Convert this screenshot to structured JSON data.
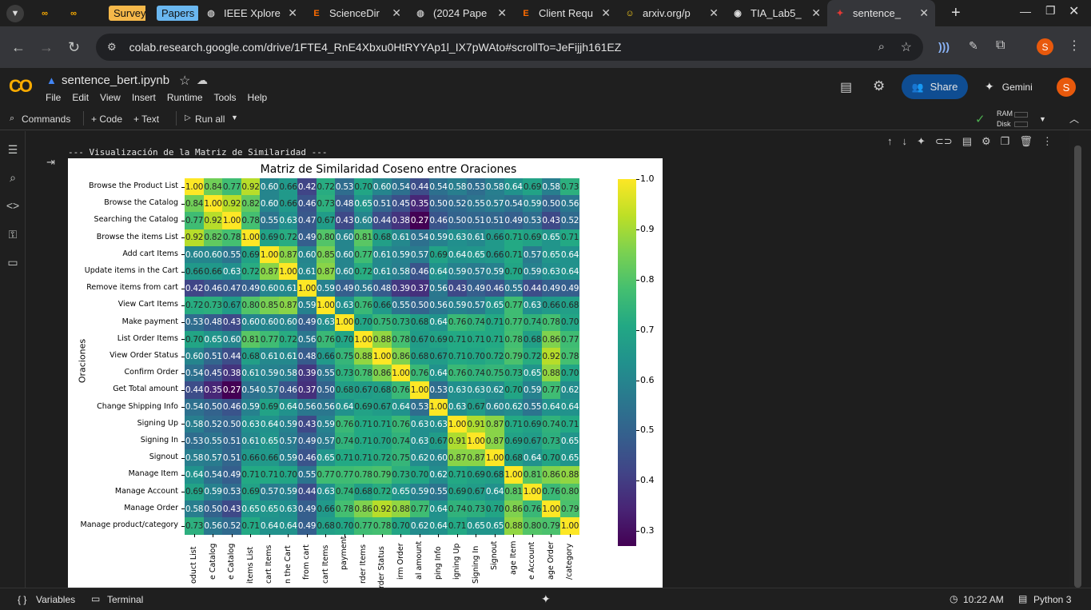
{
  "browser": {
    "tabs": [
      {
        "label": "",
        "icon": "colab-logo-icon"
      },
      {
        "label": "",
        "icon": "colab-logo-icon"
      },
      {
        "label": "Surveys",
        "icon": "bookmark-pill",
        "color": "#f5b84a"
      },
      {
        "label": "Papers",
        "icon": "bookmark-pill",
        "color": "#6ab7f0"
      },
      {
        "label": "IEEE Xplore",
        "icon": "globe-icon"
      },
      {
        "label": "ScienceDir",
        "icon": "elsevier-icon"
      },
      {
        "label": "(2024 Pape",
        "icon": "globe-icon"
      },
      {
        "label": "Client Requ",
        "icon": "elsevier-icon"
      },
      {
        "label": "arxiv.org/p",
        "icon": "smiley-icon"
      },
      {
        "label": "TIA_Lab5_",
        "icon": "github-icon"
      },
      {
        "label": "sentence_",
        "icon": "colab-icon",
        "active": true
      }
    ],
    "url": "colab.research.google.com/drive/1FTE4_RnE4Xbxu0HtRYYAp1l_IX7pWAto#scrollTo=JeFijjh161EZ",
    "profile_initial": "S"
  },
  "colab": {
    "notebook_name": "sentence_bert.ipynb",
    "menu": [
      "File",
      "Edit",
      "View",
      "Insert",
      "Runtime",
      "Tools",
      "Help"
    ],
    "share_label": "Share",
    "gemini_label": "Gemini",
    "avatar_initial": "S",
    "toolbar": {
      "commands": "Commands",
      "code": "+ Code",
      "text": "+ Text",
      "run_all": "Run all",
      "ram": "RAM",
      "disk": "Disk"
    }
  },
  "output": {
    "stdout": "--- Visualización de la Matriz de Similaridad ---"
  },
  "chart_data": {
    "type": "heatmap",
    "title": "Matriz de Similaridad Coseno entre Oraciones",
    "ylabel": "Oraciones",
    "xlabel": "",
    "colormap": "viridis",
    "vmin": 0.27,
    "vmax": 1.0,
    "colorbar_ticks": [
      "1.0",
      "0.9",
      "0.8",
      "0.7",
      "0.6",
      "0.5",
      "0.4",
      "0.3"
    ],
    "labels": [
      "Browse the Product List",
      "Browse the Catalog",
      "Searching the Catalog",
      "Browse the items List",
      "Add cart Items",
      "Update items in the Cart",
      "Remove items from cart",
      "View Cart Items",
      "Make payment",
      "List Order Items",
      "View Order Status",
      "Confirm Order",
      "Get Total amount",
      "Change Shipping Info",
      "Signing Up",
      "Signing In",
      "Signout",
      "Manage Item",
      "Manage Account",
      "Manage Order",
      "Manage product/category"
    ],
    "xtick_labels_visible": [
      "oduct List",
      "e Catalog",
      "e Catalog",
      "items List",
      "cart Items",
      "n the Cart",
      "from cart",
      "cart Items",
      "payment",
      "rder Items",
      "rder Status",
      "irm Order",
      "al amount",
      "ping Info",
      "igning Up",
      "Signing In",
      "Signout",
      "age Item",
      "e Account",
      "age Order",
      "/category"
    ],
    "matrix": [
      [
        1.0,
        0.84,
        0.77,
        0.92,
        0.6,
        0.66,
        0.42,
        0.72,
        0.53,
        0.7,
        0.6,
        0.54,
        0.44,
        0.54,
        0.58,
        0.53,
        0.58,
        0.64,
        0.69,
        0.58,
        0.73
      ],
      [
        0.84,
        1.0,
        0.92,
        0.82,
        0.6,
        0.66,
        0.46,
        0.73,
        0.48,
        0.65,
        0.51,
        0.45,
        0.35,
        0.5,
        0.52,
        0.55,
        0.57,
        0.54,
        0.59,
        0.5,
        0.56
      ],
      [
        0.77,
        0.92,
        1.0,
        0.78,
        0.55,
        0.63,
        0.47,
        0.67,
        0.43,
        0.6,
        0.44,
        0.38,
        0.27,
        0.46,
        0.5,
        0.51,
        0.51,
        0.49,
        0.53,
        0.43,
        0.52
      ],
      [
        0.92,
        0.82,
        0.78,
        1.0,
        0.69,
        0.72,
        0.49,
        0.8,
        0.6,
        0.81,
        0.68,
        0.61,
        0.54,
        0.59,
        0.63,
        0.61,
        0.66,
        0.71,
        0.69,
        0.65,
        0.71
      ],
      [
        0.6,
        0.6,
        0.55,
        0.69,
        1.0,
        0.87,
        0.6,
        0.85,
        0.6,
        0.77,
        0.61,
        0.59,
        0.57,
        0.69,
        0.64,
        0.65,
        0.66,
        0.71,
        0.57,
        0.65,
        0.64
      ],
      [
        0.66,
        0.66,
        0.63,
        0.72,
        0.87,
        1.0,
        0.61,
        0.87,
        0.6,
        0.72,
        0.61,
        0.58,
        0.46,
        0.64,
        0.59,
        0.57,
        0.59,
        0.7,
        0.59,
        0.63,
        0.64
      ],
      [
        0.42,
        0.46,
        0.47,
        0.49,
        0.6,
        0.61,
        1.0,
        0.59,
        0.49,
        0.56,
        0.48,
        0.39,
        0.37,
        0.56,
        0.43,
        0.49,
        0.46,
        0.55,
        0.44,
        0.49,
        0.49
      ],
      [
        0.72,
        0.73,
        0.67,
        0.8,
        0.85,
        0.87,
        0.59,
        1.0,
        0.63,
        0.76,
        0.66,
        0.55,
        0.5,
        0.56,
        0.59,
        0.57,
        0.65,
        0.77,
        0.63,
        0.66,
        0.68
      ],
      [
        0.53,
        0.48,
        0.43,
        0.6,
        0.6,
        0.6,
        0.49,
        0.63,
        1.0,
        0.7,
        0.75,
        0.73,
        0.68,
        0.64,
        0.76,
        0.74,
        0.71,
        0.77,
        0.74,
        0.78,
        0.7
      ],
      [
        0.7,
        0.65,
        0.6,
        0.81,
        0.77,
        0.72,
        0.56,
        0.76,
        0.7,
        1.0,
        0.88,
        0.78,
        0.67,
        0.69,
        0.71,
        0.71,
        0.71,
        0.78,
        0.68,
        0.86,
        0.77
      ],
      [
        0.6,
        0.51,
        0.44,
        0.68,
        0.61,
        0.61,
        0.48,
        0.66,
        0.75,
        0.88,
        1.0,
        0.86,
        0.68,
        0.67,
        0.71,
        0.7,
        0.72,
        0.79,
        0.72,
        0.92,
        0.78
      ],
      [
        0.54,
        0.45,
        0.38,
        0.61,
        0.59,
        0.58,
        0.39,
        0.55,
        0.73,
        0.78,
        0.86,
        1.0,
        0.76,
        0.64,
        0.76,
        0.74,
        0.75,
        0.73,
        0.65,
        0.88,
        0.7
      ],
      [
        0.44,
        0.35,
        0.27,
        0.54,
        0.57,
        0.46,
        0.37,
        0.5,
        0.68,
        0.67,
        0.68,
        0.76,
        1.0,
        0.53,
        0.63,
        0.63,
        0.62,
        0.7,
        0.59,
        0.77,
        0.62
      ],
      [
        0.54,
        0.5,
        0.46,
        0.59,
        0.69,
        0.64,
        0.56,
        0.56,
        0.64,
        0.69,
        0.67,
        0.64,
        0.53,
        1.0,
        0.63,
        0.67,
        0.6,
        0.62,
        0.55,
        0.64,
        0.64
      ],
      [
        0.58,
        0.52,
        0.5,
        0.63,
        0.64,
        0.59,
        0.43,
        0.59,
        0.76,
        0.71,
        0.71,
        0.76,
        0.63,
        0.63,
        1.0,
        0.91,
        0.87,
        0.71,
        0.69,
        0.74,
        0.71
      ],
      [
        0.53,
        0.55,
        0.51,
        0.61,
        0.65,
        0.57,
        0.49,
        0.57,
        0.74,
        0.71,
        0.7,
        0.74,
        0.63,
        0.67,
        0.91,
        1.0,
        0.87,
        0.69,
        0.67,
        0.73,
        0.65
      ],
      [
        0.58,
        0.57,
        0.51,
        0.66,
        0.66,
        0.59,
        0.46,
        0.65,
        0.71,
        0.71,
        0.72,
        0.75,
        0.62,
        0.6,
        0.87,
        0.87,
        1.0,
        0.68,
        0.64,
        0.7,
        0.65
      ],
      [
        0.64,
        0.54,
        0.49,
        0.71,
        0.71,
        0.7,
        0.55,
        0.77,
        0.77,
        0.78,
        0.79,
        0.73,
        0.7,
        0.62,
        0.71,
        0.69,
        0.68,
        1.0,
        0.81,
        0.86,
        0.88
      ],
      [
        0.69,
        0.59,
        0.53,
        0.69,
        0.57,
        0.59,
        0.44,
        0.63,
        0.74,
        0.68,
        0.72,
        0.65,
        0.59,
        0.55,
        0.69,
        0.67,
        0.64,
        0.81,
        1.0,
        0.76,
        0.8
      ],
      [
        0.58,
        0.5,
        0.43,
        0.65,
        0.65,
        0.63,
        0.49,
        0.66,
        0.78,
        0.86,
        0.92,
        0.88,
        0.77,
        0.64,
        0.74,
        0.73,
        0.7,
        0.86,
        0.76,
        1.0,
        0.79
      ],
      [
        0.73,
        0.56,
        0.52,
        0.71,
        0.64,
        0.64,
        0.49,
        0.68,
        0.7,
        0.77,
        0.78,
        0.7,
        0.62,
        0.64,
        0.71,
        0.65,
        0.65,
        0.88,
        0.8,
        0.79,
        1.0
      ]
    ]
  },
  "statusbar": {
    "variables": "Variables",
    "terminal": "Terminal",
    "time": "10:22 AM",
    "runtime": "Python 3"
  }
}
